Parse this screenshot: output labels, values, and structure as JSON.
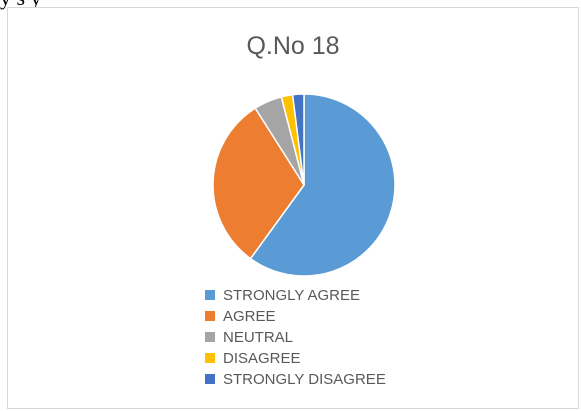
{
  "page": {
    "top_text": "y  s  y"
  },
  "chart_data": {
    "type": "pie",
    "title": "Q.No 18",
    "categories": [
      "STRONGLY AGREE",
      "AGREE",
      "NEUTRAL",
      "DISAGREE",
      "STRONGLY DISAGREE"
    ],
    "values": [
      60,
      31,
      5,
      2,
      2
    ],
    "colors": [
      "#5b9bd5",
      "#ed7d31",
      "#a5a5a5",
      "#ffc000",
      "#4472c4"
    ],
    "legend_position": "bottom"
  }
}
